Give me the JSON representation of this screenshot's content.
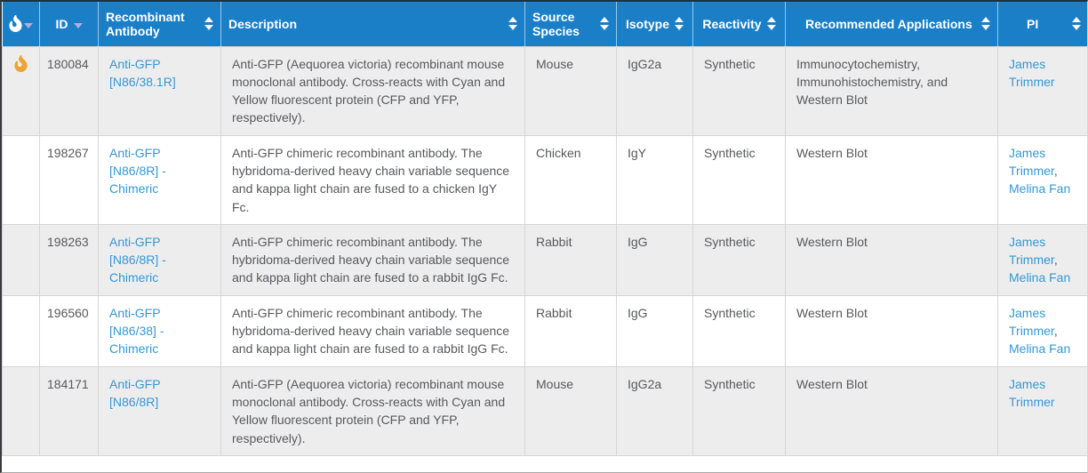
{
  "colors": {
    "header_bg": "#1b7fc7",
    "header_text": "#ffffff",
    "link": "#3597d3",
    "flame_row": "#f0a232",
    "flame_header": "#ffffff",
    "sorted_arrow": "#b4aadf",
    "row_stripe": "#ededee",
    "body_text": "#58595b"
  },
  "table": {
    "columns": [
      {
        "key": "hot",
        "label": "",
        "icon": "flame-icon",
        "sort_state": "desc"
      },
      {
        "key": "id",
        "label": "ID",
        "sort_state": "desc"
      },
      {
        "key": "antibody",
        "label": "Recombinant Antibody",
        "sort_state": "none"
      },
      {
        "key": "description",
        "label": "Description",
        "sort_state": "none"
      },
      {
        "key": "source",
        "label": "Source Species",
        "sort_state": "none"
      },
      {
        "key": "isotype",
        "label": "Isotype",
        "sort_state": "none"
      },
      {
        "key": "reactivity",
        "label": "Reactivity",
        "sort_state": "none"
      },
      {
        "key": "applications",
        "label": "Recommended Applications",
        "sort_state": "none"
      },
      {
        "key": "pi",
        "label": "PI",
        "sort_state": "none"
      }
    ],
    "rows": [
      {
        "hot": true,
        "id": "180084",
        "antibody": "Anti-GFP [N86/38.1R]",
        "description": "Anti-GFP (Aequorea victoria) recombinant mouse monoclonal antibody. Cross-reacts with Cyan and Yellow fluorescent protein (CFP and YFP, respectively).",
        "source": "Mouse",
        "isotype": "IgG2a",
        "reactivity": "Synthetic",
        "applications": "Immunocytochemistry, Immunohistochemistry, and Western Blot",
        "pi": [
          "James Trimmer"
        ]
      },
      {
        "hot": false,
        "id": "198267",
        "antibody": "Anti-GFP [N86/8R] - Chimeric",
        "description": "Anti-GFP chimeric recombinant antibody. The hybridoma-derived heavy chain variable sequence and kappa light chain are fused to a chicken IgY Fc.",
        "source": "Chicken",
        "isotype": "IgY",
        "reactivity": "Synthetic",
        "applications": "Western Blot",
        "pi": [
          "James Trimmer",
          "Melina Fan"
        ]
      },
      {
        "hot": false,
        "id": "198263",
        "antibody": "Anti-GFP [N86/8R] - Chimeric",
        "description": "Anti-GFP chimeric recombinant antibody. The hybridoma-derived heavy chain variable sequence and kappa light chain are fused to a rabbit IgG Fc.",
        "source": "Rabbit",
        "isotype": "IgG",
        "reactivity": "Synthetic",
        "applications": "Western Blot",
        "pi": [
          "James Trimmer",
          "Melina Fan"
        ]
      },
      {
        "hot": false,
        "id": "196560",
        "antibody": "Anti-GFP [N86/38] - Chimeric",
        "description": "Anti-GFP chimeric recombinant antibody. The hybridoma-derived heavy chain variable sequence and kappa light chain are fused to a rabbit IgG Fc.",
        "source": "Rabbit",
        "isotype": "IgG",
        "reactivity": "Synthetic",
        "applications": "Western Blot",
        "pi": [
          "James Trimmer",
          "Melina Fan"
        ]
      },
      {
        "hot": false,
        "id": "184171",
        "antibody": "Anti-GFP [N86/8R]",
        "description": "Anti-GFP (Aequorea victoria) recombinant mouse monoclonal antibody. Cross-reacts with Cyan and Yellow fluorescent protein (CFP and YFP, respectively).",
        "source": "Mouse",
        "isotype": "IgG2a",
        "reactivity": "Synthetic",
        "applications": "Western Blot",
        "pi": [
          "James Trimmer"
        ]
      }
    ]
  }
}
